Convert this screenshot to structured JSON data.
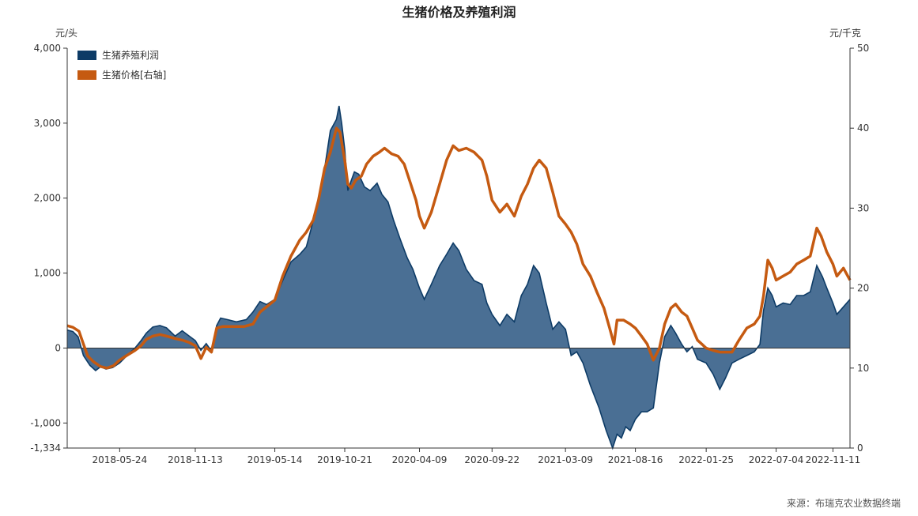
{
  "chart_data": {
    "type": "area",
    "title": "生猪价格及养殖利润",
    "left_unit": "元/头",
    "right_unit": "元/千克",
    "source": "来源：布瑞克农业数据终端",
    "legend_position": "top-left",
    "grid": false,
    "y_left": {
      "lim": [
        -1334,
        4000
      ],
      "ticks": [
        "4,000",
        "3,000",
        "2,000",
        "1,000",
        "0",
        "-1,000",
        "-1,334"
      ],
      "tick_values": [
        4000,
        3000,
        2000,
        1000,
        0,
        -1000,
        -1334
      ]
    },
    "y_right": {
      "lim": [
        0,
        50
      ],
      "ticks": [
        "50",
        "40",
        "30",
        "20",
        "10",
        "0"
      ],
      "tick_values": [
        50,
        40,
        30,
        20,
        10,
        0
      ]
    },
    "x_ticks": [
      "2018-05-24",
      "2018-11-13",
      "2019-05-14",
      "2019-10-21",
      "2020-04-09",
      "2020-09-22",
      "2021-03-09",
      "2021-08-16",
      "2022-01-25",
      "2022-07-04",
      "2022-11-11"
    ],
    "x_range": [
      "2018-01-24",
      "2022-12-20"
    ],
    "series": [
      {
        "name": "生猪养殖利润",
        "type": "area",
        "axis": "left",
        "color": "#0d3b66",
        "fill": "#4a6f94",
        "points": [
          [
            "2018-01-24",
            240
          ],
          [
            "2018-02-06",
            220
          ],
          [
            "2018-02-18",
            150
          ],
          [
            "2018-03-02",
            -100
          ],
          [
            "2018-03-17",
            -230
          ],
          [
            "2018-03-30",
            -300
          ],
          [
            "2018-04-10",
            -250
          ],
          [
            "2018-04-23",
            -280
          ],
          [
            "2018-05-08",
            -260
          ],
          [
            "2018-05-24",
            -200
          ],
          [
            "2018-06-10",
            -100
          ],
          [
            "2018-06-28",
            0
          ],
          [
            "2018-07-12",
            100
          ],
          [
            "2018-07-24",
            200
          ],
          [
            "2018-08-08",
            280
          ],
          [
            "2018-08-24",
            300
          ],
          [
            "2018-09-08",
            270
          ],
          [
            "2018-09-28",
            160
          ],
          [
            "2018-10-14",
            230
          ],
          [
            "2018-10-30",
            160
          ],
          [
            "2018-11-13",
            100
          ],
          [
            "2018-11-26",
            -30
          ],
          [
            "2018-12-08",
            60
          ],
          [
            "2018-12-20",
            -40
          ],
          [
            "2019-01-01",
            300
          ],
          [
            "2019-01-10",
            400
          ],
          [
            "2019-01-25",
            380
          ],
          [
            "2019-02-15",
            350
          ],
          [
            "2019-03-10",
            380
          ],
          [
            "2019-03-25",
            480
          ],
          [
            "2019-04-10",
            620
          ],
          [
            "2019-04-25",
            580
          ],
          [
            "2019-05-14",
            650
          ],
          [
            "2019-06-01",
            900
          ],
          [
            "2019-06-20",
            1150
          ],
          [
            "2019-07-10",
            1250
          ],
          [
            "2019-07-25",
            1350
          ],
          [
            "2019-08-10",
            1700
          ],
          [
            "2019-08-22",
            2000
          ],
          [
            "2019-09-05",
            2400
          ],
          [
            "2019-09-18",
            2900
          ],
          [
            "2019-10-02",
            3050
          ],
          [
            "2019-10-08",
            3230
          ],
          [
            "2019-10-14",
            3000
          ],
          [
            "2019-10-21",
            2650
          ],
          [
            "2019-10-28",
            2100
          ],
          [
            "2019-11-04",
            2220
          ],
          [
            "2019-11-12",
            2350
          ],
          [
            "2019-11-22",
            2320
          ],
          [
            "2019-12-05",
            2150
          ],
          [
            "2019-12-18",
            2100
          ],
          [
            "2020-01-03",
            2200
          ],
          [
            "2020-01-14",
            2050
          ],
          [
            "2020-01-28",
            1950
          ],
          [
            "2020-02-10",
            1700
          ],
          [
            "2020-02-25",
            1450
          ],
          [
            "2020-03-12",
            1200
          ],
          [
            "2020-03-25",
            1050
          ],
          [
            "2020-04-09",
            800
          ],
          [
            "2020-04-20",
            650
          ],
          [
            "2020-05-06",
            850
          ],
          [
            "2020-05-25",
            1100
          ],
          [
            "2020-06-10",
            1250
          ],
          [
            "2020-06-25",
            1400
          ],
          [
            "2020-07-08",
            1300
          ],
          [
            "2020-07-25",
            1050
          ],
          [
            "2020-08-12",
            900
          ],
          [
            "2020-08-30",
            850
          ],
          [
            "2020-09-10",
            600
          ],
          [
            "2020-09-22",
            450
          ],
          [
            "2020-10-10",
            300
          ],
          [
            "2020-10-26",
            450
          ],
          [
            "2020-11-12",
            350
          ],
          [
            "2020-11-28",
            700
          ],
          [
            "2020-12-12",
            850
          ],
          [
            "2020-12-26",
            1100
          ],
          [
            "2021-01-08",
            1000
          ],
          [
            "2021-01-24",
            600
          ],
          [
            "2021-02-08",
            250
          ],
          [
            "2021-02-22",
            350
          ],
          [
            "2021-03-09",
            250
          ],
          [
            "2021-03-22",
            -100
          ],
          [
            "2021-04-04",
            -50
          ],
          [
            "2021-04-18",
            -200
          ],
          [
            "2021-05-05",
            -500
          ],
          [
            "2021-05-25",
            -800
          ],
          [
            "2021-06-10",
            -1100
          ],
          [
            "2021-06-25",
            -1334
          ],
          [
            "2021-07-05",
            -1150
          ],
          [
            "2021-07-15",
            -1200
          ],
          [
            "2021-07-25",
            -1050
          ],
          [
            "2021-08-04",
            -1100
          ],
          [
            "2021-08-16",
            -950
          ],
          [
            "2021-08-30",
            -850
          ],
          [
            "2021-09-12",
            -850
          ],
          [
            "2021-09-26",
            -800
          ],
          [
            "2021-10-10",
            -200
          ],
          [
            "2021-10-22",
            150
          ],
          [
            "2021-11-05",
            300
          ],
          [
            "2021-11-16",
            200
          ],
          [
            "2021-11-30",
            50
          ],
          [
            "2021-12-12",
            -50
          ],
          [
            "2021-12-24",
            20
          ],
          [
            "2022-01-05",
            -150
          ],
          [
            "2022-01-25",
            -200
          ],
          [
            "2022-02-10",
            -350
          ],
          [
            "2022-02-25",
            -550
          ],
          [
            "2022-03-10",
            -400
          ],
          [
            "2022-03-25",
            -200
          ],
          [
            "2022-04-10",
            -150
          ],
          [
            "2022-04-28",
            -100
          ],
          [
            "2022-05-15",
            -50
          ],
          [
            "2022-05-28",
            50
          ],
          [
            "2022-06-05",
            500
          ],
          [
            "2022-06-15",
            800
          ],
          [
            "2022-06-25",
            700
          ],
          [
            "2022-07-04",
            550
          ],
          [
            "2022-07-20",
            600
          ],
          [
            "2022-08-05",
            580
          ],
          [
            "2022-08-20",
            700
          ],
          [
            "2022-09-05",
            700
          ],
          [
            "2022-09-20",
            750
          ],
          [
            "2022-10-05",
            1100
          ],
          [
            "2022-10-18",
            950
          ],
          [
            "2022-10-28",
            800
          ],
          [
            "2022-11-11",
            600
          ],
          [
            "2022-11-20",
            450
          ],
          [
            "2022-12-05",
            550
          ],
          [
            "2022-12-20",
            650
          ]
        ]
      },
      {
        "name": "生猪价格[右轴]",
        "type": "line",
        "axis": "right",
        "color": "#c55a11",
        "points": [
          [
            "2018-01-24",
            15.3
          ],
          [
            "2018-02-06",
            15.1
          ],
          [
            "2018-02-20",
            14.6
          ],
          [
            "2018-03-02",
            13.0
          ],
          [
            "2018-03-12",
            11.5
          ],
          [
            "2018-03-25",
            10.8
          ],
          [
            "2018-04-10",
            10.2
          ],
          [
            "2018-04-25",
            10.0
          ],
          [
            "2018-05-10",
            10.3
          ],
          [
            "2018-05-24",
            11.0
          ],
          [
            "2018-06-10",
            11.6
          ],
          [
            "2018-06-28",
            12.2
          ],
          [
            "2018-07-12",
            12.8
          ],
          [
            "2018-07-24",
            13.6
          ],
          [
            "2018-08-08",
            14.0
          ],
          [
            "2018-08-24",
            14.2
          ],
          [
            "2018-09-08",
            14.0
          ],
          [
            "2018-09-28",
            13.7
          ],
          [
            "2018-10-14",
            13.5
          ],
          [
            "2018-10-30",
            13.2
          ],
          [
            "2018-11-13",
            12.8
          ],
          [
            "2018-11-26",
            11.2
          ],
          [
            "2018-12-08",
            12.6
          ],
          [
            "2018-12-20",
            12.0
          ],
          [
            "2019-01-01",
            15.0
          ],
          [
            "2019-01-15",
            15.2
          ],
          [
            "2019-02-05",
            15.2
          ],
          [
            "2019-03-05",
            15.2
          ],
          [
            "2019-03-25",
            15.5
          ],
          [
            "2019-04-10",
            17.0
          ],
          [
            "2019-05-14",
            18.5
          ],
          [
            "2019-06-01",
            21.5
          ],
          [
            "2019-06-20",
            24.0
          ],
          [
            "2019-07-10",
            26.0
          ],
          [
            "2019-07-25",
            27.0
          ],
          [
            "2019-08-10",
            28.5
          ],
          [
            "2019-08-22",
            31.0
          ],
          [
            "2019-09-05",
            35.0
          ],
          [
            "2019-09-18",
            37.0
          ],
          [
            "2019-10-02",
            40.0
          ],
          [
            "2019-10-10",
            39.5
          ],
          [
            "2019-10-21",
            36.0
          ],
          [
            "2019-10-28",
            33.0
          ],
          [
            "2019-11-05",
            32.5
          ],
          [
            "2019-11-15",
            33.5
          ],
          [
            "2019-11-28",
            34.0
          ],
          [
            "2019-12-10",
            35.5
          ],
          [
            "2019-12-25",
            36.5
          ],
          [
            "2020-01-08",
            37.0
          ],
          [
            "2020-01-20",
            37.5
          ],
          [
            "2020-02-05",
            36.8
          ],
          [
            "2020-02-20",
            36.5
          ],
          [
            "2020-03-05",
            35.5
          ],
          [
            "2020-03-20",
            33.0
          ],
          [
            "2020-04-01",
            31.0
          ],
          [
            "2020-04-09",
            29.0
          ],
          [
            "2020-04-20",
            27.5
          ],
          [
            "2020-05-06",
            29.5
          ],
          [
            "2020-05-25",
            33.0
          ],
          [
            "2020-06-10",
            36.0
          ],
          [
            "2020-06-25",
            37.8
          ],
          [
            "2020-07-08",
            37.2
          ],
          [
            "2020-07-25",
            37.5
          ],
          [
            "2020-08-12",
            37.0
          ],
          [
            "2020-08-30",
            36.0
          ],
          [
            "2020-09-10",
            34.0
          ],
          [
            "2020-09-22",
            31.0
          ],
          [
            "2020-10-10",
            29.5
          ],
          [
            "2020-10-26",
            30.5
          ],
          [
            "2020-11-12",
            29.0
          ],
          [
            "2020-11-28",
            31.5
          ],
          [
            "2020-12-12",
            33.0
          ],
          [
            "2020-12-26",
            35.0
          ],
          [
            "2021-01-08",
            36.0
          ],
          [
            "2021-01-24",
            35.0
          ],
          [
            "2021-02-08",
            32.0
          ],
          [
            "2021-02-22",
            29.0
          ],
          [
            "2021-03-09",
            28.0
          ],
          [
            "2021-03-22",
            27.0
          ],
          [
            "2021-04-04",
            25.5
          ],
          [
            "2021-04-18",
            23.0
          ],
          [
            "2021-05-05",
            21.5
          ],
          [
            "2021-05-20",
            19.5
          ],
          [
            "2021-06-05",
            17.5
          ],
          [
            "2021-06-18",
            15.0
          ],
          [
            "2021-06-28",
            13.0
          ],
          [
            "2021-07-05",
            16.0
          ],
          [
            "2021-07-20",
            16.0
          ],
          [
            "2021-08-04",
            15.5
          ],
          [
            "2021-08-16",
            15.0
          ],
          [
            "2021-08-30",
            14.0
          ],
          [
            "2021-09-12",
            13.0
          ],
          [
            "2021-09-26",
            11.0
          ],
          [
            "2021-10-10",
            12.5
          ],
          [
            "2021-10-22",
            15.5
          ],
          [
            "2021-11-05",
            17.5
          ],
          [
            "2021-11-16",
            18.0
          ],
          [
            "2021-11-30",
            17.0
          ],
          [
            "2021-12-12",
            16.5
          ],
          [
            "2021-12-24",
            15.0
          ],
          [
            "2022-01-05",
            13.5
          ],
          [
            "2022-01-25",
            12.5
          ],
          [
            "2022-02-10",
            12.2
          ],
          [
            "2022-02-25",
            12.0
          ],
          [
            "2022-03-10",
            12.0
          ],
          [
            "2022-03-25",
            12.0
          ],
          [
            "2022-04-10",
            13.5
          ],
          [
            "2022-04-28",
            15.0
          ],
          [
            "2022-05-15",
            15.5
          ],
          [
            "2022-05-28",
            16.5
          ],
          [
            "2022-06-05",
            19.0
          ],
          [
            "2022-06-15",
            23.5
          ],
          [
            "2022-06-25",
            22.5
          ],
          [
            "2022-07-04",
            21.0
          ],
          [
            "2022-07-20",
            21.5
          ],
          [
            "2022-08-05",
            22.0
          ],
          [
            "2022-08-20",
            23.0
          ],
          [
            "2022-09-05",
            23.5
          ],
          [
            "2022-09-20",
            24.0
          ],
          [
            "2022-10-05",
            27.5
          ],
          [
            "2022-10-15",
            26.5
          ],
          [
            "2022-10-28",
            24.5
          ],
          [
            "2022-11-11",
            23.0
          ],
          [
            "2022-11-20",
            21.5
          ],
          [
            "2022-12-05",
            22.5
          ],
          [
            "2022-12-20",
            21.0
          ]
        ]
      }
    ]
  }
}
